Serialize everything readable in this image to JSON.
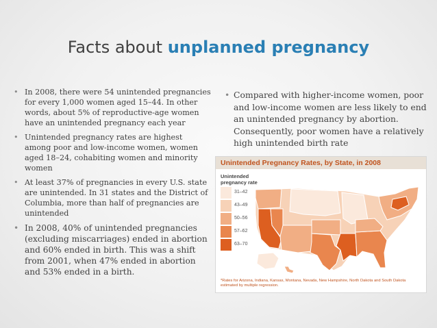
{
  "slide": {
    "title_prefix": "Facts about ",
    "title_highlight": "unplanned pregnancy"
  },
  "left_bullets": [
    "In 2008, there were 54 unintended pregnancies for every 1,000 women aged 15–44. In other words, about 5% of reproductive-age women have an unintended pregnancy each year",
    "Unintended pregnancy rates are highest among poor and low-income women, women aged 18–24, cohabiting women and minority women",
    "At least 37% of pregnancies in every U.S. state are unintended. In 31 states and the District of Columbia, more than half of pregnancies are unintended",
    "In 2008, 40% of unintended pregnancies (excluding miscarriages) ended in abortion and 60% ended in birth. This was a shift from 2001, when 47% ended in abortion and 53% ended in a birth."
  ],
  "right_bullets": [
    "Compared with higher-income women, poor and low-income women are less likely to end an unintended pregnancy by abortion. Consequently, poor women have a relatively high unintended birth rate"
  ],
  "bullet_glyph": "•",
  "map": {
    "title": "Unintended Pregnancy Rates, by State, in 2008",
    "legend_title": "Unintended pregnancy rate",
    "legend": [
      {
        "label": "31–42",
        "color": "#fbe9dc"
      },
      {
        "label": "43–49",
        "color": "#f7d2b7"
      },
      {
        "label": "50–56",
        "color": "#f1ae84"
      },
      {
        "label": "57–62",
        "color": "#e9864e"
      },
      {
        "label": "63–70",
        "color": "#dd5f20"
      }
    ],
    "footnote": "*Rates for Arizona, Indiana, Kansas, Montana, Nevada, New Hampshire, North Dakota and South Dakota estimated by multiple regression."
  }
}
